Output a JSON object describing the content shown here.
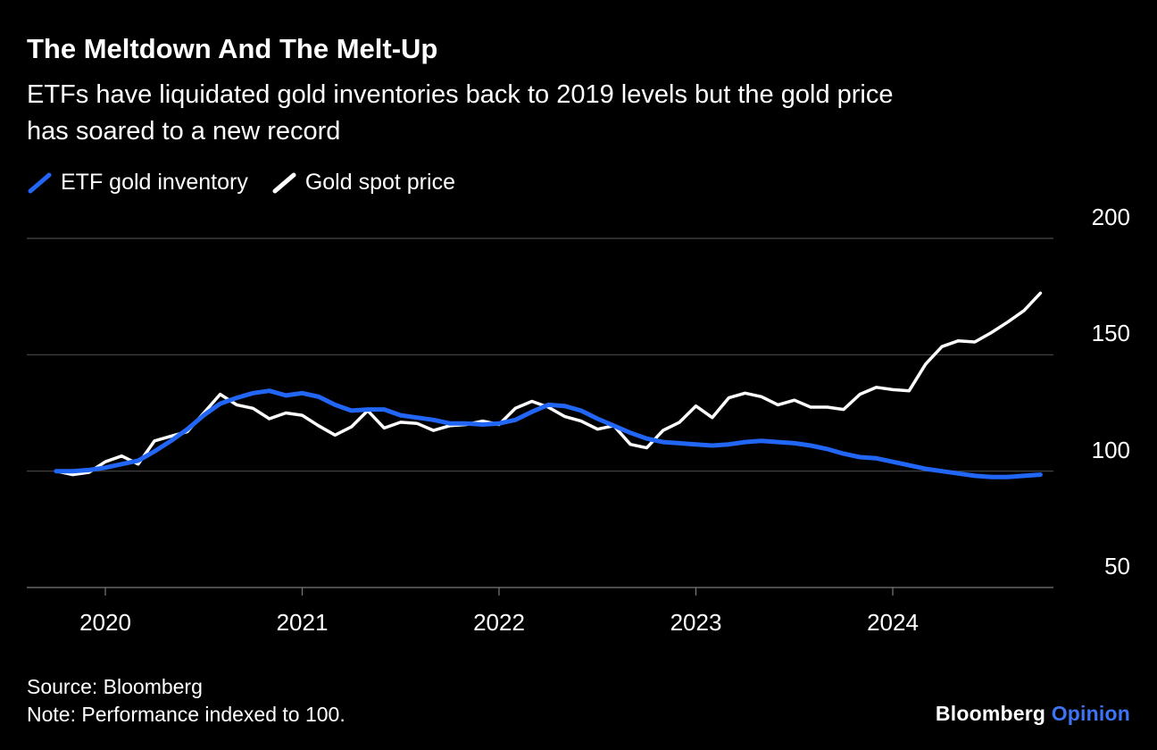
{
  "header": {
    "title": "The Meltdown And The Melt-Up",
    "subtitle": "ETFs have liquidated gold inventories back to 2019 levels but the gold price has soared to a new record",
    "subtitle_lines": [
      "ETFs have liquidated gold inventories back to 2019 levels but the gold price",
      "has soared to a new record"
    ]
  },
  "legend": {
    "items": [
      {
        "label": "ETF gold inventory",
        "color": "#2166f5"
      },
      {
        "label": "Gold spot price",
        "color": "#ffffff"
      }
    ]
  },
  "footer": {
    "source": "Source: Bloomberg",
    "note": "Note: Performance indexed to 100.",
    "logo": {
      "brand": "Bloomberg",
      "suffix": "Opinion",
      "suffix_color": "#3d73f5"
    }
  },
  "colors": {
    "background": "#000000",
    "text": "#ffffff",
    "gridline": "#4a4a4a",
    "axis": "#7a7a7a",
    "etf_blue": "#2166f5",
    "gold_white": "#ffffff",
    "opinion_blue": "#3d73f5"
  },
  "chart_data": {
    "type": "line",
    "title": "The Meltdown And The Melt-Up",
    "subtitle": "ETFs have liquidated gold inventories back to 2019 levels but the gold price has soared to a new record",
    "xlabel": "",
    "ylabel": "",
    "x_unit": "decimal years, monthly from Oct 2019 to Oct 2024",
    "index_base": 100,
    "ylim": [
      50,
      200
    ],
    "yticks": [
      200,
      150,
      100,
      50
    ],
    "xticks": [
      2020,
      2021,
      2022,
      2023,
      2024
    ],
    "grid": "horizontal gridlines at yticks",
    "legend_position": "top-left",
    "y_axis_side": "right",
    "x": [
      2019.75,
      2019.833,
      2019.917,
      2020,
      2020.083,
      2020.167,
      2020.25,
      2020.333,
      2020.417,
      2020.5,
      2020.583,
      2020.667,
      2020.75,
      2020.833,
      2020.917,
      2021,
      2021.083,
      2021.167,
      2021.25,
      2021.333,
      2021.417,
      2021.5,
      2021.583,
      2021.667,
      2021.75,
      2021.833,
      2021.917,
      2022,
      2022.083,
      2022.167,
      2022.25,
      2022.333,
      2022.417,
      2022.5,
      2022.583,
      2022.667,
      2022.75,
      2022.833,
      2022.917,
      2023,
      2023.083,
      2023.167,
      2023.25,
      2023.333,
      2023.417,
      2023.5,
      2023.583,
      2023.667,
      2023.75,
      2023.833,
      2023.917,
      2024,
      2024.083,
      2024.167,
      2024.25,
      2024.333,
      2024.417,
      2024.5,
      2024.583,
      2024.667,
      2024.75
    ],
    "series": [
      {
        "name": "ETF gold inventory",
        "color": "#2166f5",
        "values": [
          100,
          100,
          100.5,
          101.5,
          103,
          104.5,
          108.5,
          113,
          118,
          124,
          129,
          131.5,
          133.5,
          134.5,
          132.5,
          133.5,
          132,
          128.5,
          126,
          126.5,
          126.5,
          124,
          123,
          122,
          120.5,
          120.5,
          120,
          120.5,
          122,
          125.5,
          128.5,
          128,
          126,
          122.5,
          119.5,
          116.5,
          114,
          112.5,
          112,
          111.5,
          111,
          111.5,
          112.5,
          113,
          112.5,
          112,
          111,
          109.5,
          107.5,
          106,
          105.5,
          104,
          102.5,
          101,
          100,
          99,
          98,
          97.5,
          97.5,
          98,
          98.5
        ]
      },
      {
        "name": "Gold spot price",
        "color": "#ffffff",
        "values": [
          100,
          98.5,
          99.5,
          104,
          106.5,
          103,
          113,
          115,
          117,
          125,
          133,
          128.5,
          127,
          122.5,
          125,
          124,
          119.5,
          115.5,
          119,
          126,
          118.5,
          121,
          120.5,
          117.5,
          119.5,
          120,
          121.5,
          120,
          127,
          130,
          127.5,
          123.5,
          121.5,
          118,
          119.5,
          111.5,
          110,
          117.5,
          121,
          128,
          123,
          131.5,
          133.5,
          132,
          128.5,
          130.5,
          127.5,
          127.5,
          126.5,
          133,
          136,
          135,
          134.5,
          146,
          153.5,
          156,
          155.5,
          159.5,
          164,
          169,
          176.5
        ]
      }
    ]
  }
}
